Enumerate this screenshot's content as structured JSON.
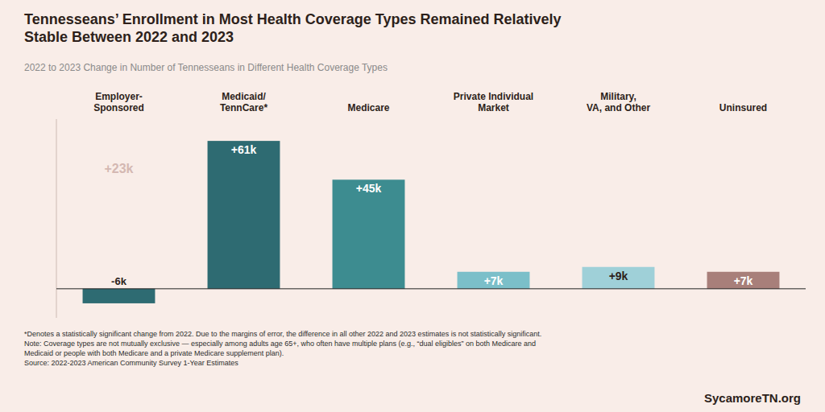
{
  "chart_data": {
    "type": "bar",
    "title": "Tennesseans’ Enrollment in Most Health Coverage Types Remained Relatively\nStable Between 2022 and 2023",
    "subtitle": "2022 to 2023 Change in Number of Tennesseans in Different Health Coverage Types",
    "categories": [
      "Employer-\nSponsored",
      "Medicaid/\nTennCare*",
      "Medicare",
      "Private Individual\nMarket",
      "Military,\nVA, and Other",
      "Uninsured"
    ],
    "values": [
      -6,
      61,
      45,
      7,
      9,
      7
    ],
    "value_labels": [
      "-6k",
      "+61k",
      "+45k",
      "+7k",
      "+9k",
      "+7k"
    ],
    "data_labels": true,
    "colors": [
      "#2e6b72",
      "#2e6b72",
      "#3d8c90",
      "#7bbfc9",
      "#9fd0d8",
      "#a87f7a"
    ],
    "ylim": [
      -12,
      70
    ],
    "tick_labels": false,
    "grid": false,
    "annotations": [
      "+23k",
      "*Denotes a statistically significant change from 2022. Due to the margins of error, the difference in all other 2022 and 2023 estimates is not statistically significant.\nNote: Coverage types are not mutually exclusive — especially among adults age 65+, who often have multiple plans (e.g., “dual eligibles” on both Medicare and\nMedicaid or people with both Medicare and a private Medicare supplement plan).\nSource: 2022-2023 American Community Survey 1-Year Estimates",
      "SycamoreTN.org"
    ]
  }
}
